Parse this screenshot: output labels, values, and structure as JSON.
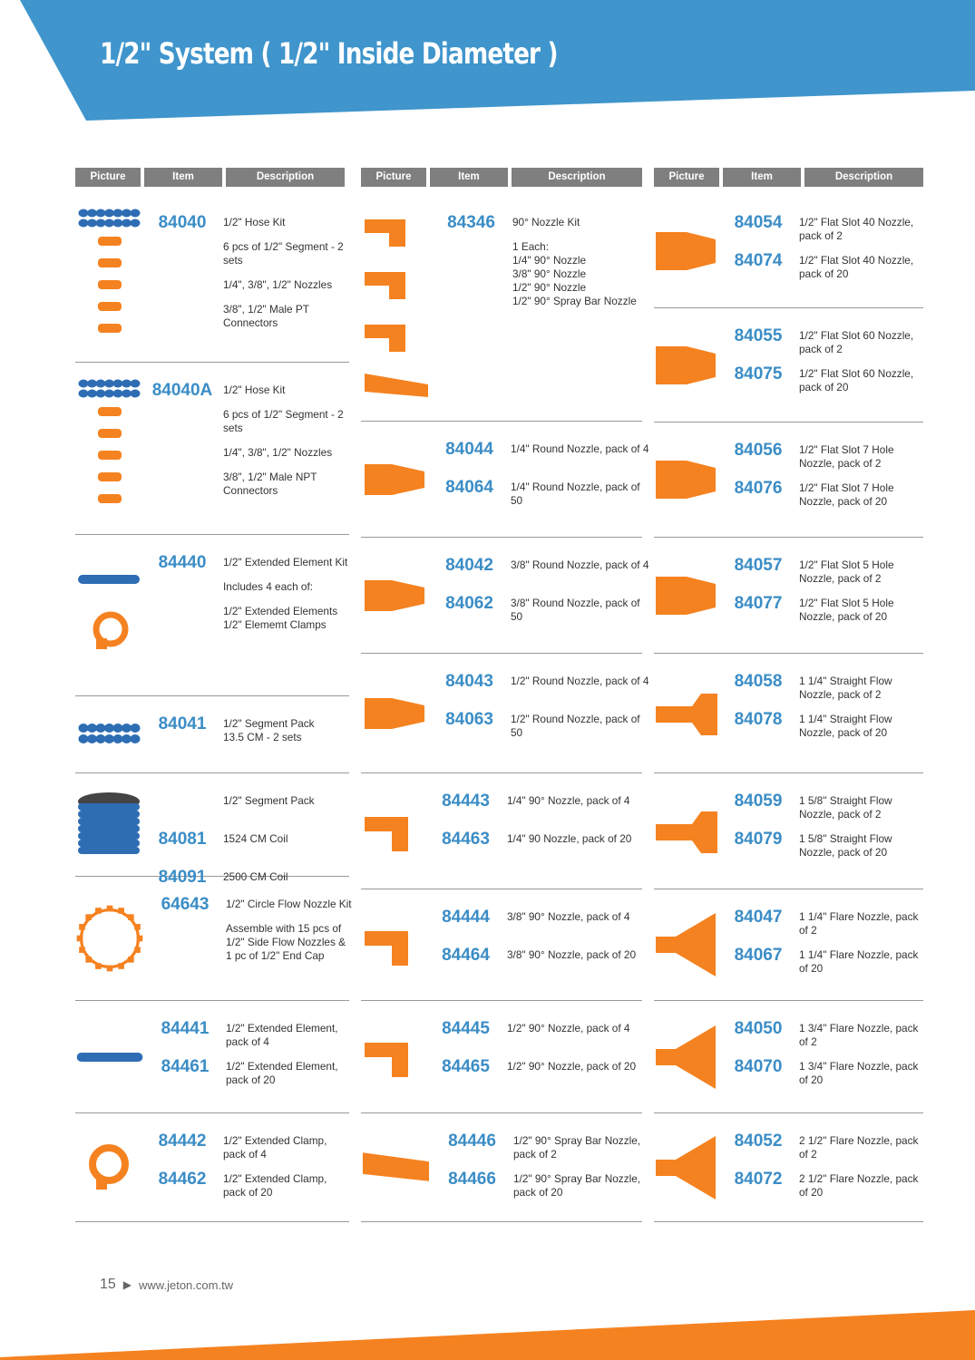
{
  "title": "1/2\" System ( 1/2\" Inside Diameter )",
  "headers": [
    "Picture",
    "Item",
    "Description"
  ],
  "colors": {
    "blue": "#3f95cc",
    "orange": "#f58220",
    "hose": "#2e6db4",
    "code": "#3b8dc6"
  },
  "footer": {
    "page": "15",
    "url": "www.jeton.com.tw"
  },
  "columns": [
    {
      "rows": [
        {
          "pic": "hose-kit",
          "entries": [
            {
              "code": "84040",
              "desc": [
                "1/2\" Hose Kit",
                "6 pcs of 1/2\" Segment - 2 sets",
                "1/4\", 3/8\", 1/2\" Nozzles",
                "3/8\", 1/2\" Male PT Connectors"
              ]
            }
          ]
        },
        {
          "pic": "hose-kit",
          "entries": [
            {
              "code": "84040A",
              "desc": [
                "1/2\" Hose Kit",
                "6 pcs of 1/2\" Segment - 2 sets",
                "1/4\", 3/8\", 1/2\" Nozzles",
                "3/8\", 1/2\" Male NPT Connectors"
              ]
            }
          ]
        },
        {
          "pic": "ext-kit",
          "entries": [
            {
              "code": "84440",
              "desc": [
                "1/2\" Extended Element Kit",
                "Includes 4 each of:",
                "1/2\" Extended Elements\n1/2\" Elememt Clamps"
              ]
            }
          ]
        },
        {
          "pic": "segment",
          "entries": [
            {
              "code": "84041",
              "desc": [
                "1/2\"  Segment Pack\n13.5 CM - 2 sets"
              ]
            }
          ]
        },
        {
          "pic": "coil",
          "entries": [
            {
              "code": "",
              "desc": [
                "1/2\"  Segment Pack"
              ]
            },
            {
              "code": "84081",
              "desc": [
                "1524 CM Coil"
              ]
            },
            {
              "code": "84091",
              "desc": [
                "2500 CM Coil"
              ]
            }
          ]
        },
        {
          "pic": "circle",
          "entries": [
            {
              "code": "64643",
              "desc": [
                "1/2\" Circle Flow Nozzle Kit",
                "Assemble with 15 pcs of 1/2\" Side Flow Nozzles & 1 pc of 1/2\" End Cap"
              ]
            }
          ]
        },
        {
          "pic": "ext-element",
          "entries": [
            {
              "code": "84441",
              "desc": [
                "1/2\" Extended Element, pack of 4"
              ]
            },
            {
              "code": "84461",
              "desc": [
                "1/2\" Extended Element, pack of 20"
              ]
            }
          ]
        },
        {
          "pic": "clamp",
          "entries": [
            {
              "code": "84442",
              "desc": [
                "1/2\" Extended Clamp, pack of 4"
              ]
            },
            {
              "code": "84462",
              "desc": [
                "1/2\" Extended Clamp, pack of 20"
              ]
            }
          ]
        }
      ]
    },
    {
      "rows": [
        {
          "pic": "nozzle90-kit",
          "entries": [
            {
              "code": "84346",
              "desc": [
                "90° Nozzle Kit",
                "1 Each:\n1/4\" 90° Nozzle\n3/8\" 90° Nozzle\n1/2\" 90° Nozzle\n1/2\" 90° Spray Bar Nozzle"
              ]
            }
          ]
        },
        {
          "pic": "round",
          "entries": [
            {
              "code": "84044",
              "desc": [
                "1/4\" Round Nozzle, pack of 4"
              ]
            },
            {
              "code": "84064",
              "desc": [
                "1/4\" Round Nozzle, pack of 50"
              ]
            }
          ]
        },
        {
          "pic": "round",
          "entries": [
            {
              "code": "84042",
              "desc": [
                "3/8\" Round Nozzle, pack of 4"
              ]
            },
            {
              "code": "84062",
              "desc": [
                "3/8\" Round Nozzle, pack of 50"
              ]
            }
          ]
        },
        {
          "pic": "round",
          "entries": [
            {
              "code": "84043",
              "desc": [
                "1/2\" Round Nozzle, pack of 4"
              ]
            },
            {
              "code": "84063",
              "desc": [
                "1/2\" Round Nozzle, pack of 50"
              ]
            }
          ]
        },
        {
          "pic": "nozzle90",
          "entries": [
            {
              "code": "84443",
              "desc": [
                "1/4\" 90° Nozzle, pack of 4"
              ]
            },
            {
              "code": "84463",
              "desc": [
                "1/4\" 90 Nozzle, pack of 20"
              ]
            }
          ]
        },
        {
          "pic": "nozzle90",
          "entries": [
            {
              "code": "84444",
              "desc": [
                "3/8\" 90° Nozzle, pack of 4"
              ]
            },
            {
              "code": "84464",
              "desc": [
                "3/8\" 90° Nozzle, pack of 20"
              ]
            }
          ]
        },
        {
          "pic": "nozzle90",
          "entries": [
            {
              "code": "84445",
              "desc": [
                "1/2\" 90° Nozzle, pack of 4"
              ]
            },
            {
              "code": "84465",
              "desc": [
                "1/2\" 90° Nozzle, pack of 20"
              ]
            }
          ]
        },
        {
          "pic": "spray90",
          "entries": [
            {
              "code": "84446",
              "desc": [
                "1/2\" 90° Spray Bar Nozzle,  pack of 2"
              ]
            },
            {
              "code": "84466",
              "desc": [
                "1/2\" 90° Spray Bar Nozzle,  pack of 20"
              ]
            }
          ]
        }
      ]
    },
    {
      "rows": [
        {
          "pic": "flat",
          "entries": [
            {
              "code": "84054",
              "desc": [
                "1/2\" Flat Slot 40 Nozzle, pack of 2"
              ]
            },
            {
              "code": "84074",
              "desc": [
                "1/2\" Flat Slot 40 Nozzle, pack of 20"
              ]
            }
          ]
        },
        {
          "pic": "flat",
          "entries": [
            {
              "code": "84055",
              "desc": [
                "1/2\" Flat Slot 60 Nozzle, pack of 2"
              ]
            },
            {
              "code": "84075",
              "desc": [
                "1/2\" Flat Slot 60 Nozzle, pack of 20"
              ]
            }
          ]
        },
        {
          "pic": "flat",
          "entries": [
            {
              "code": "84056",
              "desc": [
                "1/2\" Flat Slot 7 Hole Nozzle, pack of 2"
              ]
            },
            {
              "code": "84076",
              "desc": [
                "1/2\" Flat Slot 7 Hole Nozzle, pack of 20"
              ]
            }
          ]
        },
        {
          "pic": "flat",
          "entries": [
            {
              "code": "84057",
              "desc": [
                "1/2\" Flat Slot 5 Hole Nozzle, pack of 2"
              ]
            },
            {
              "code": "84077",
              "desc": [
                "1/2\" Flat Slot 5 Hole Nozzle, pack of 20"
              ]
            }
          ]
        },
        {
          "pic": "straight",
          "entries": [
            {
              "code": "84058",
              "desc": [
                "1 1/4\" Straight Flow Nozzle, pack of 2"
              ]
            },
            {
              "code": "84078",
              "desc": [
                "1 1/4\" Straight Flow Nozzle, pack of 20"
              ]
            }
          ]
        },
        {
          "pic": "straight",
          "entries": [
            {
              "code": "84059",
              "desc": [
                "1 5/8\" Straight Flow Nozzle, pack of 2"
              ]
            },
            {
              "code": "84079",
              "desc": [
                "1 5/8\" Straight Flow Nozzle, pack of 20"
              ]
            }
          ]
        },
        {
          "pic": "flare",
          "entries": [
            {
              "code": "84047",
              "desc": [
                "1 1/4\" Flare Nozzle, pack of 2"
              ]
            },
            {
              "code": "84067",
              "desc": [
                "1 1/4\" Flare Nozzle, pack of 20"
              ]
            }
          ]
        },
        {
          "pic": "flare",
          "entries": [
            {
              "code": "84050",
              "desc": [
                "1 3/4\" Flare Nozzle, pack of 2"
              ]
            },
            {
              "code": "84070",
              "desc": [
                "1 3/4\" Flare Nozzle, pack of 20"
              ]
            }
          ]
        },
        {
          "pic": "flare",
          "entries": [
            {
              "code": "84052",
              "desc": [
                "2 1/2\" Flare Nozzle, pack of 2"
              ]
            },
            {
              "code": "84072",
              "desc": [
                "2 1/2\" Flare Nozzle, pack of 20"
              ]
            }
          ]
        }
      ]
    }
  ]
}
